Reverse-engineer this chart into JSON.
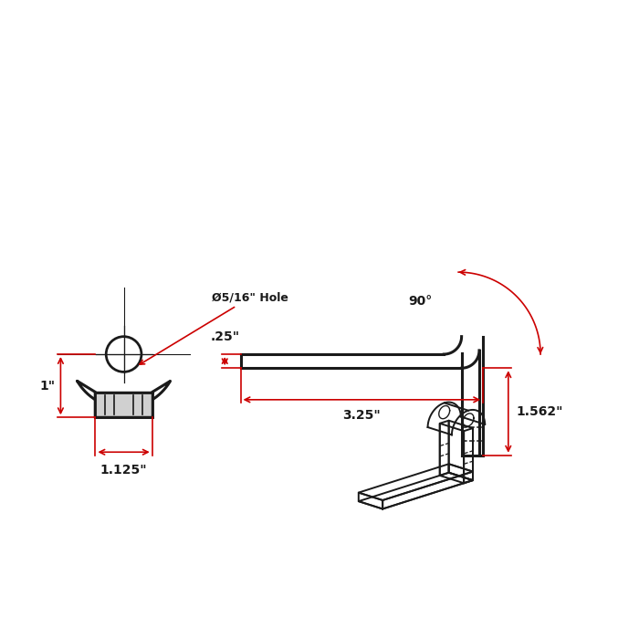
{
  "bg_color": "#ffffff",
  "line_color": "#1a1a1a",
  "dim_color": "#cc0000",
  "dim_text_color": "#1a1a1a",
  "annotations": {
    "hole_label": "Ø5/16\" Hole",
    "dim_width": "1.125\"",
    "dim_height": "1\"",
    "dim_length": "3.25\"",
    "dim_vert": "1.562\"",
    "dim_thickness": ".25\"",
    "angle_label": "90°"
  }
}
